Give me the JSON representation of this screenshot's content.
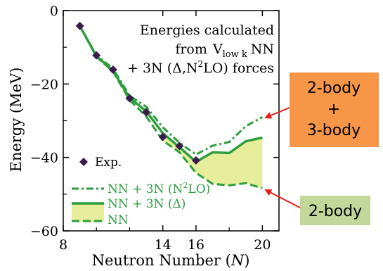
{
  "chart_data": {
    "type": "line",
    "xlabel": "Neutron Number (",
    "xlabel_var": "N",
    "xlabel_end": ")",
    "ylabel": "Energy (MeV)",
    "xlim": [
      8,
      21
    ],
    "ylim": [
      -60,
      0
    ],
    "xticks": [
      8,
      14,
      16,
      20
    ],
    "xtick_labels": [
      "8",
      "14",
      "16",
      "20"
    ],
    "yticks": [
      0,
      -20,
      -40,
      -60
    ],
    "ytick_labels": [
      "0",
      "−20",
      "−40",
      "−60"
    ],
    "colors": {
      "green": "#2e9e3c",
      "fill": "#e6ee9c",
      "exp": "#3a1a4a",
      "arrow": "#e3201b"
    },
    "annotation": {
      "line1": "Energies calculated",
      "line2_pre": "from",
      "line2_V": "V",
      "line2_sub": "low k",
      "line2_post": "NN",
      "line3_pre": "+ 3N (Δ,N",
      "line3_sup": "2",
      "line3_post": "LO) forces"
    },
    "legend": {
      "exp": "Exp.",
      "n2lo_pre": "NN + 3N (N",
      "n2lo_sup": "2",
      "n2lo_post": "LO)",
      "delta": "NN + 3N (Δ)",
      "nn": "NN"
    },
    "callouts": {
      "box1_line1": "2-body",
      "box1_line2": "+",
      "box1_line3": "3-body",
      "box1_color": "#f79646",
      "box2": "2-body",
      "box2_color": "#c4d79b"
    },
    "exp": {
      "x": [
        9,
        10,
        11,
        12,
        13,
        14,
        15,
        16
      ],
      "y": [
        -4.2,
        -12.2,
        -16.1,
        -23.9,
        -27.7,
        -34.4,
        -36.9,
        -40.8
      ]
    },
    "series": [
      {
        "name": "NN + 3N (N²LO)",
        "style": "dashdot",
        "x": [
          9,
          10,
          11,
          12,
          13,
          14,
          15,
          16,
          17,
          18,
          19,
          20
        ],
        "y": [
          -4.2,
          -12.2,
          -15.8,
          -23.2,
          -26.2,
          -31.8,
          -36.0,
          -39.2,
          -36.8,
          -35.8,
          -31.5,
          -29.0
        ]
      },
      {
        "name": "NN + 3N (Δ)",
        "style": "solid",
        "x": [
          9,
          10,
          11,
          12,
          13,
          14,
          15,
          16,
          17,
          18,
          19,
          20
        ],
        "y": [
          -4.2,
          -12.4,
          -16.4,
          -23.8,
          -27.4,
          -33.4,
          -37.2,
          -41.2,
          -38.6,
          -38.8,
          -35.6,
          -34.6
        ]
      },
      {
        "name": "NN",
        "style": "dashed",
        "x": [
          9,
          10,
          11,
          12,
          13,
          14,
          15,
          16,
          17,
          18,
          19,
          20
        ],
        "y": [
          -4.2,
          -12.6,
          -16.6,
          -24.4,
          -28.8,
          -35.4,
          -38.6,
          -44.2,
          -47.2,
          -47.6,
          -47.0,
          -48.4
        ]
      }
    ]
  }
}
